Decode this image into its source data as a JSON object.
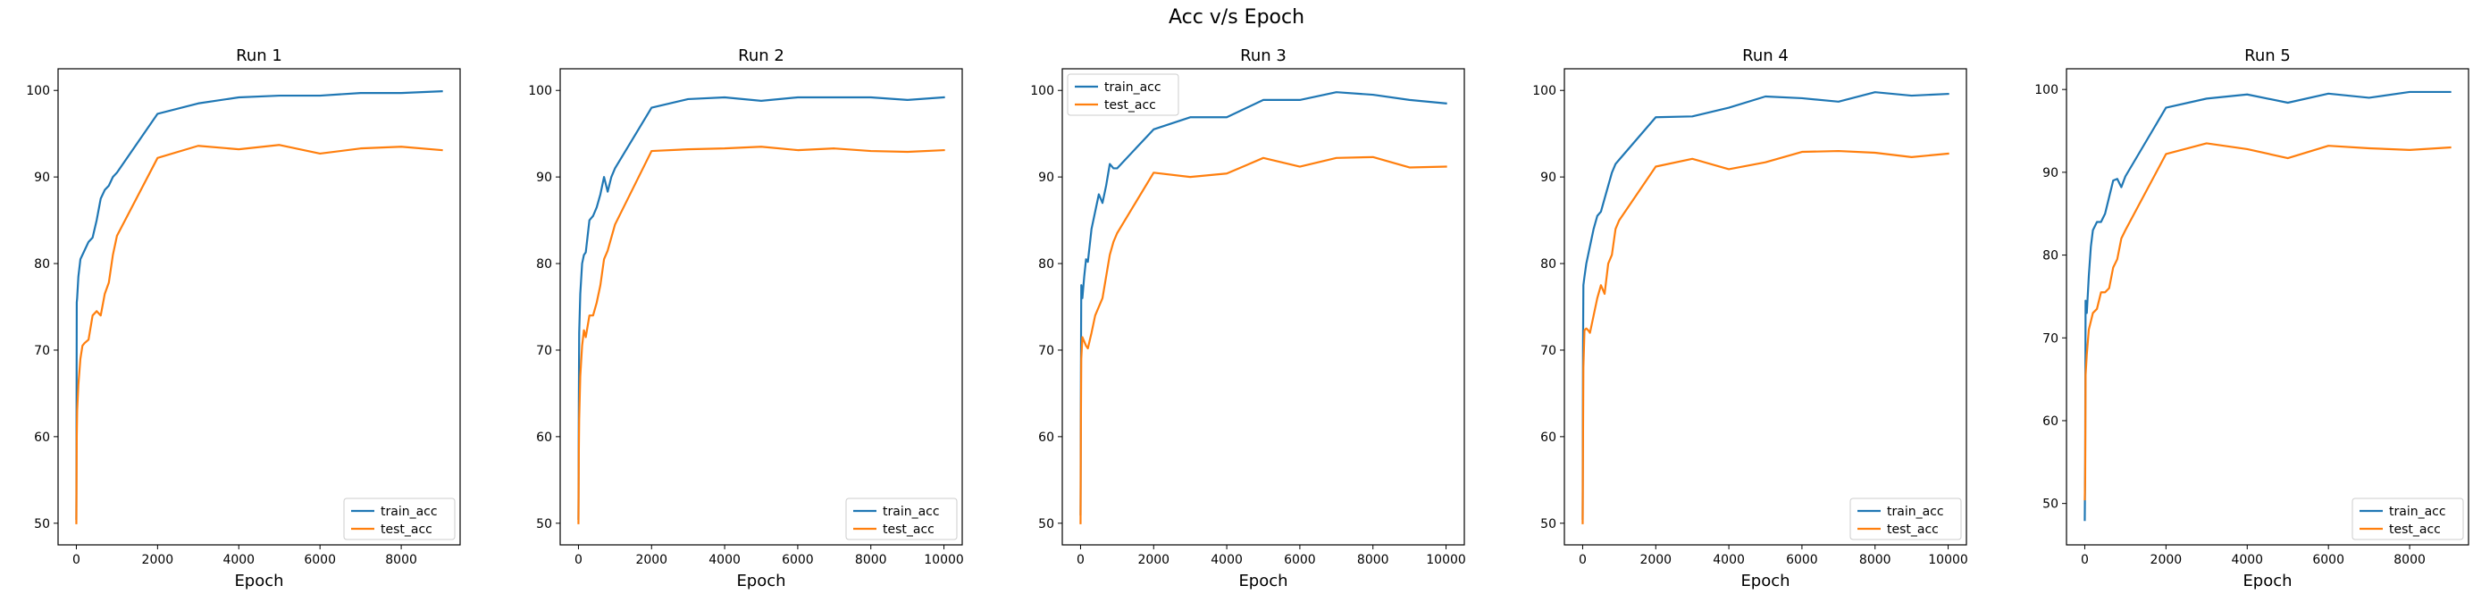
{
  "suptitle": "Acc v/s Epoch",
  "colors": {
    "train": "#1f77b4",
    "test": "#ff7f0e"
  },
  "chart_data": [
    {
      "type": "line",
      "title": "Run 1",
      "xlabel": "Epoch",
      "ylabel": "",
      "xlim": [
        -450,
        9450
      ],
      "ylim": [
        47.5,
        102.5
      ],
      "xticks": [
        0,
        2000,
        4000,
        6000,
        8000
      ],
      "yticks": [
        50,
        60,
        70,
        80,
        90,
        100
      ],
      "legend": "lower-right",
      "series": [
        {
          "name": "train_acc",
          "x": [
            0,
            10,
            20,
            50,
            100,
            150,
            200,
            300,
            400,
            500,
            600,
            700,
            800,
            900,
            1000,
            2000,
            3000,
            4000,
            5000,
            6000,
            7000,
            8000,
            9000
          ],
          "y": [
            50.5,
            75.5,
            76,
            78.5,
            80.5,
            81,
            81.5,
            82.5,
            83,
            85,
            87.5,
            88.5,
            89,
            90,
            90.5,
            97.3,
            98.5,
            99.2,
            99.4,
            99.4,
            99.7,
            99.7,
            99.9
          ]
        },
        {
          "name": "test_acc",
          "x": [
            0,
            10,
            20,
            50,
            100,
            150,
            200,
            300,
            400,
            500,
            600,
            700,
            800,
            900,
            1000,
            2000,
            3000,
            4000,
            5000,
            6000,
            7000,
            8000,
            9000
          ],
          "y": [
            50,
            60,
            63,
            66,
            69,
            70.5,
            70.8,
            71.2,
            74,
            74.5,
            74,
            76.5,
            77.8,
            81,
            83.2,
            92.2,
            93.6,
            93.2,
            93.7,
            92.7,
            93.3,
            93.5,
            93.1
          ]
        }
      ]
    },
    {
      "type": "line",
      "title": "Run 2",
      "xlabel": "Epoch",
      "ylabel": "",
      "xlim": [
        -500,
        10500
      ],
      "ylim": [
        47.5,
        102.5
      ],
      "xticks": [
        0,
        2000,
        4000,
        6000,
        8000,
        10000
      ],
      "yticks": [
        50,
        60,
        70,
        80,
        90,
        100
      ],
      "legend": "lower-right",
      "series": [
        {
          "name": "train_acc",
          "x": [
            0,
            10,
            20,
            50,
            100,
            150,
            200,
            300,
            400,
            500,
            600,
            700,
            800,
            900,
            1000,
            2000,
            3000,
            4000,
            5000,
            6000,
            7000,
            8000,
            9000,
            10000
          ],
          "y": [
            50.5,
            64,
            72,
            76.5,
            80,
            81,
            81.3,
            85,
            85.5,
            86.5,
            88,
            90,
            88.3,
            90,
            91,
            98,
            99,
            99.2,
            98.8,
            99.2,
            99.2,
            99.2,
            98.9,
            99.2
          ]
        },
        {
          "name": "test_acc",
          "x": [
            0,
            10,
            20,
            50,
            100,
            150,
            200,
            300,
            400,
            500,
            600,
            700,
            800,
            900,
            1000,
            2000,
            3000,
            4000,
            5000,
            6000,
            7000,
            8000,
            9000,
            10000
          ],
          "y": [
            50,
            58,
            62,
            67,
            70.5,
            72.3,
            71.5,
            74,
            74,
            75.5,
            77.5,
            80.5,
            81.5,
            83,
            84.5,
            93,
            93.2,
            93.3,
            93.5,
            93.1,
            93.3,
            93,
            92.9,
            93.1
          ]
        }
      ]
    },
    {
      "type": "line",
      "title": "Run 3",
      "xlabel": "Epoch",
      "ylabel": "",
      "xlim": [
        -500,
        10500
      ],
      "ylim": [
        47.5,
        102.5
      ],
      "xticks": [
        0,
        2000,
        4000,
        6000,
        8000,
        10000
      ],
      "yticks": [
        50,
        60,
        70,
        80,
        90,
        100
      ],
      "legend": "upper-left",
      "series": [
        {
          "name": "train_acc",
          "x": [
            0,
            10,
            20,
            50,
            100,
            150,
            200,
            300,
            400,
            500,
            600,
            700,
            800,
            900,
            1000,
            2000,
            3000,
            4000,
            5000,
            6000,
            7000,
            8000,
            9000,
            10000
          ],
          "y": [
            51,
            67.5,
            77.5,
            76,
            78.5,
            80.5,
            80.2,
            84,
            86,
            88,
            87,
            89,
            91.5,
            91,
            91,
            95.5,
            96.9,
            96.9,
            98.9,
            98.9,
            99.8,
            99.5,
            98.9,
            98.5
          ]
        },
        {
          "name": "test_acc",
          "x": [
            0,
            10,
            20,
            50,
            100,
            150,
            200,
            300,
            400,
            500,
            600,
            700,
            800,
            900,
            1000,
            2000,
            3000,
            4000,
            5000,
            6000,
            7000,
            8000,
            9000,
            10000
          ],
          "y": [
            50,
            62,
            69,
            71.5,
            71,
            70.5,
            70.2,
            72,
            74,
            75,
            76,
            78.5,
            81,
            82.5,
            83.5,
            90.5,
            90,
            90.4,
            92.2,
            91.2,
            92.2,
            92.3,
            91.1,
            91.2
          ]
        }
      ]
    },
    {
      "type": "line",
      "title": "Run 4",
      "xlabel": "Epoch",
      "ylabel": "",
      "xlim": [
        -500,
        10500
      ],
      "ylim": [
        47.5,
        102.5
      ],
      "xticks": [
        0,
        2000,
        4000,
        6000,
        8000,
        10000
      ],
      "yticks": [
        50,
        60,
        70,
        80,
        90,
        100
      ],
      "legend": "lower-right",
      "series": [
        {
          "name": "train_acc",
          "x": [
            0,
            10,
            20,
            50,
            100,
            150,
            200,
            300,
            400,
            500,
            600,
            700,
            800,
            900,
            1000,
            2000,
            3000,
            4000,
            5000,
            6000,
            7000,
            8000,
            9000,
            10000
          ],
          "y": [
            50.5,
            70,
            77.5,
            78.5,
            80,
            81,
            82,
            84,
            85.5,
            86,
            87.5,
            89,
            90.5,
            91.5,
            92,
            96.9,
            97,
            98,
            99.3,
            99.1,
            98.7,
            99.8,
            99.4,
            99.6
          ]
        },
        {
          "name": "test_acc",
          "x": [
            0,
            10,
            20,
            50,
            100,
            150,
            200,
            300,
            400,
            500,
            600,
            700,
            800,
            900,
            1000,
            2000,
            3000,
            4000,
            5000,
            6000,
            7000,
            8000,
            9000,
            10000
          ],
          "y": [
            50,
            60,
            68,
            72.3,
            72.5,
            72.3,
            72,
            74,
            76,
            77.5,
            76.5,
            80,
            81,
            84,
            85,
            91.2,
            92.1,
            90.9,
            91.7,
            92.9,
            93,
            92.8,
            92.3,
            92.7
          ]
        }
      ]
    },
    {
      "type": "line",
      "title": "Run 5",
      "xlabel": "Epoch",
      "ylabel": "",
      "xlim": [
        -450,
        9450
      ],
      "ylim": [
        45,
        102.5
      ],
      "xticks": [
        0,
        2000,
        4000,
        6000,
        8000
      ],
      "yticks": [
        50,
        60,
        70,
        80,
        90,
        100
      ],
      "legend": "lower-right",
      "series": [
        {
          "name": "train_acc",
          "x": [
            0,
            10,
            20,
            50,
            100,
            150,
            200,
            300,
            400,
            500,
            600,
            700,
            800,
            900,
            1000,
            2000,
            3000,
            4000,
            5000,
            6000,
            7000,
            8000,
            9000
          ],
          "y": [
            48,
            55,
            74.5,
            73,
            77.5,
            81,
            83,
            84,
            84,
            85,
            87,
            89,
            89.2,
            88.2,
            89.5,
            97.8,
            98.9,
            99.4,
            98.4,
            99.5,
            99,
            99.7,
            99.7
          ]
        },
        {
          "name": "test_acc",
          "x": [
            0,
            10,
            20,
            50,
            100,
            150,
            200,
            300,
            400,
            500,
            600,
            700,
            800,
            900,
            1000,
            2000,
            3000,
            4000,
            5000,
            6000,
            7000,
            8000,
            9000
          ],
          "y": [
            50.5,
            53,
            65.5,
            68,
            71,
            72,
            73,
            73.5,
            75.5,
            75.5,
            76,
            78.5,
            79.5,
            82,
            83,
            92.2,
            93.5,
            92.8,
            91.7,
            93.2,
            92.9,
            92.7,
            93
          ]
        }
      ]
    }
  ]
}
